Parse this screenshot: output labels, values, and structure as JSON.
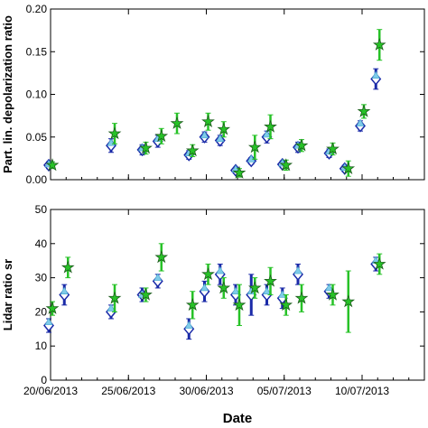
{
  "chart_data": [
    {
      "type": "scatter",
      "ylabel": "Part. lin. depolarization ratio",
      "xlabel": "",
      "ylim": [
        0.0,
        0.2
      ],
      "yticks": [
        "0.00",
        "0.05",
        "0.10",
        "0.15",
        "0.20"
      ],
      "grid": false,
      "series": [
        {
          "color": "#1a2aa8",
          "marker": "diamond",
          "points": [
            {
              "x": "2013-06-20",
              "y": 0.017,
              "err": 0.004
            },
            {
              "x": "2013-06-24",
              "y": 0.04,
              "err": 0.008
            },
            {
              "x": "2013-06-26",
              "y": 0.035,
              "err": 0.006
            },
            {
              "x": "2013-06-27",
              "y": 0.045,
              "err": 0.007
            },
            {
              "x": "2013-06-29",
              "y": 0.029,
              "err": 0.005
            },
            {
              "x": "2013-06-30",
              "y": 0.05,
              "err": 0.006
            },
            {
              "x": "2013-07-01",
              "y": 0.046,
              "err": 0.006
            },
            {
              "x": "2013-07-02",
              "y": 0.011,
              "err": 0.003
            },
            {
              "x": "2013-07-03",
              "y": 0.022,
              "err": 0.004
            },
            {
              "x": "2013-07-04",
              "y": 0.05,
              "err": 0.007
            },
            {
              "x": "2013-07-05",
              "y": 0.018,
              "err": 0.004
            },
            {
              "x": "2013-07-06",
              "y": 0.038,
              "err": 0.006
            },
            {
              "x": "2013-07-08",
              "y": 0.031,
              "err": 0.005
            },
            {
              "x": "2013-07-09",
              "y": 0.013,
              "err": 0.004
            },
            {
              "x": "2013-07-10",
              "y": 0.063,
              "err": 0.006
            },
            {
              "x": "2013-07-11",
              "y": 0.118,
              "err": 0.012
            }
          ]
        },
        {
          "color": "#7ecbe8",
          "marker": "triangle",
          "points": [
            {
              "x": "2013-06-20",
              "y": 0.018
            },
            {
              "x": "2013-06-24",
              "y": 0.043
            },
            {
              "x": "2013-06-26",
              "y": 0.037
            },
            {
              "x": "2013-06-27",
              "y": 0.048
            },
            {
              "x": "2013-06-29",
              "y": 0.031
            },
            {
              "x": "2013-06-30",
              "y": 0.052
            },
            {
              "x": "2013-07-01",
              "y": 0.048
            },
            {
              "x": "2013-07-02",
              "y": 0.012
            },
            {
              "x": "2013-07-03",
              "y": 0.024
            },
            {
              "x": "2013-07-04",
              "y": 0.053
            },
            {
              "x": "2013-07-05",
              "y": 0.019
            },
            {
              "x": "2013-07-06",
              "y": 0.04
            },
            {
              "x": "2013-07-08",
              "y": 0.033
            },
            {
              "x": "2013-07-09",
              "y": 0.014
            },
            {
              "x": "2013-07-10",
              "y": 0.066
            },
            {
              "x": "2013-07-11",
              "y": 0.122
            }
          ]
        },
        {
          "color": "#27c227",
          "marker": "star",
          "points": [
            {
              "x": "2013-06-20",
              "y": 0.017,
              "err": 0.004
            },
            {
              "x": "2013-06-24",
              "y": 0.054,
              "err": 0.012
            },
            {
              "x": "2013-06-26",
              "y": 0.037,
              "err": 0.007
            },
            {
              "x": "2013-06-27",
              "y": 0.051,
              "err": 0.009
            },
            {
              "x": "2013-06-28",
              "y": 0.066,
              "err": 0.012
            },
            {
              "x": "2013-06-29",
              "y": 0.034,
              "err": 0.007
            },
            {
              "x": "2013-06-30",
              "y": 0.068,
              "err": 0.01
            },
            {
              "x": "2013-07-01",
              "y": 0.059,
              "err": 0.009
            },
            {
              "x": "2013-07-02",
              "y": 0.008,
              "err": 0.005
            },
            {
              "x": "2013-07-03",
              "y": 0.038,
              "err": 0.014
            },
            {
              "x": "2013-07-04",
              "y": 0.062,
              "err": 0.014
            },
            {
              "x": "2013-07-05",
              "y": 0.017,
              "err": 0.006
            },
            {
              "x": "2013-07-06",
              "y": 0.04,
              "err": 0.007
            },
            {
              "x": "2013-07-08",
              "y": 0.036,
              "err": 0.007
            },
            {
              "x": "2013-07-09",
              "y": 0.013,
              "err": 0.009
            },
            {
              "x": "2013-07-10",
              "y": 0.08,
              "err": 0.008
            },
            {
              "x": "2013-07-11",
              "y": 0.158,
              "err": 0.018
            }
          ]
        }
      ]
    },
    {
      "type": "scatter",
      "ylabel": "Lidar ratio sr",
      "xlabel": "Date",
      "ylim": [
        0,
        50
      ],
      "yticks": [
        "0",
        "10",
        "20",
        "30",
        "40",
        "50"
      ],
      "xlim": [
        "2013-06-20",
        "2013-07-14"
      ],
      "xticks": [
        "20/06/2013",
        "25/06/2013",
        "30/06/2013",
        "05/07/2013",
        "10/07/2013"
      ],
      "grid": false,
      "series": [
        {
          "color": "#1a2aa8",
          "marker": "diamond",
          "points": [
            {
              "x": "2013-06-20",
              "y": 16,
              "err": 2
            },
            {
              "x": "2013-06-21",
              "y": 25,
              "err": 3
            },
            {
              "x": "2013-06-24",
              "y": 20,
              "err": 2
            },
            {
              "x": "2013-06-26",
              "y": 25,
              "err": 2
            },
            {
              "x": "2013-06-27",
              "y": 29,
              "err": 2
            },
            {
              "x": "2013-06-29",
              "y": 15,
              "err": 3
            },
            {
              "x": "2013-06-30",
              "y": 26,
              "err": 3
            },
            {
              "x": "2013-07-01",
              "y": 31,
              "err": 3
            },
            {
              "x": "2013-07-02",
              "y": 25,
              "err": 3
            },
            {
              "x": "2013-07-03",
              "y": 25,
              "err": 6
            },
            {
              "x": "2013-07-04",
              "y": 25,
              "err": 3
            },
            {
              "x": "2013-07-05",
              "y": 24,
              "err": 3
            },
            {
              "x": "2013-07-06",
              "y": 31,
              "err": 3
            },
            {
              "x": "2013-07-08",
              "y": 26,
              "err": 2
            },
            {
              "x": "2013-07-11",
              "y": 34,
              "err": 2
            }
          ]
        },
        {
          "color": "#7ecbe8",
          "marker": "triangle",
          "points": [
            {
              "x": "2013-06-20",
              "y": 17
            },
            {
              "x": "2013-06-21",
              "y": 26
            },
            {
              "x": "2013-06-24",
              "y": 21
            },
            {
              "x": "2013-06-26",
              "y": 25
            },
            {
              "x": "2013-06-27",
              "y": 30
            },
            {
              "x": "2013-06-29",
              "y": 16
            },
            {
              "x": "2013-06-30",
              "y": 27
            },
            {
              "x": "2013-07-01",
              "y": 32
            },
            {
              "x": "2013-07-02",
              "y": 26
            },
            {
              "x": "2013-07-03",
              "y": 26
            },
            {
              "x": "2013-07-04",
              "y": 26
            },
            {
              "x": "2013-07-05",
              "y": 25
            },
            {
              "x": "2013-07-06",
              "y": 32
            },
            {
              "x": "2013-07-08",
              "y": 27
            },
            {
              "x": "2013-07-11",
              "y": 35
            }
          ]
        },
        {
          "color": "#27c227",
          "marker": "star",
          "points": [
            {
              "x": "2013-06-20",
              "y": 21,
              "err": 2
            },
            {
              "x": "2013-06-21",
              "y": 33,
              "err": 3
            },
            {
              "x": "2013-06-24",
              "y": 24,
              "err": 4
            },
            {
              "x": "2013-06-26",
              "y": 25,
              "err": 2
            },
            {
              "x": "2013-06-27",
              "y": 36,
              "err": 4
            },
            {
              "x": "2013-06-29",
              "y": 22,
              "err": 4
            },
            {
              "x": "2013-06-30",
              "y": 31,
              "err": 3
            },
            {
              "x": "2013-07-01",
              "y": 27,
              "err": 3
            },
            {
              "x": "2013-07-02",
              "y": 22,
              "err": 6
            },
            {
              "x": "2013-07-03",
              "y": 27,
              "err": 3
            },
            {
              "x": "2013-07-04",
              "y": 29,
              "err": 4
            },
            {
              "x": "2013-07-05",
              "y": 22,
              "err": 3
            },
            {
              "x": "2013-07-06",
              "y": 24,
              "err": 4
            },
            {
              "x": "2013-07-08",
              "y": 25,
              "err": 3
            },
            {
              "x": "2013-07-09",
              "y": 23,
              "err": 9
            },
            {
              "x": "2013-07-11",
              "y": 34,
              "err": 3
            }
          ]
        }
      ]
    }
  ]
}
